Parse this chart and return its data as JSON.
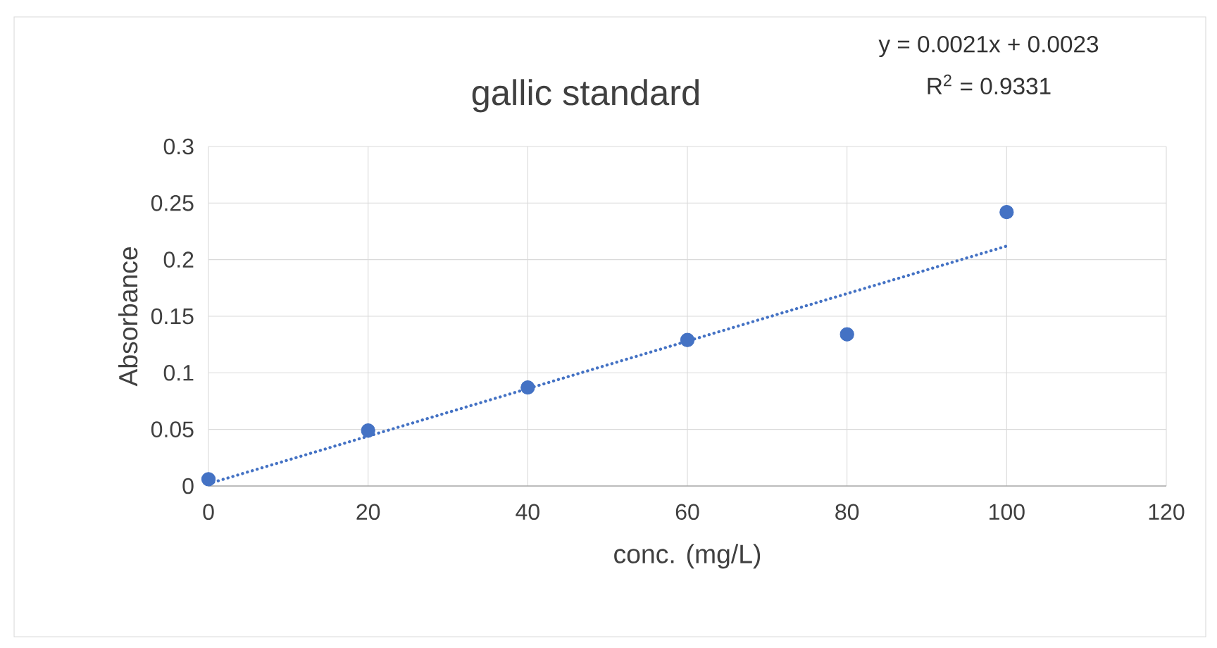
{
  "chart_data": {
    "type": "scatter",
    "title": "gallic standard",
    "xlabel": "conc. (mg/L)",
    "ylabel": "Absorbance",
    "annotations": [
      "y = 0.0021x + 0.0023",
      "R$^{2}$ = 0.9331"
    ],
    "x": [
      0,
      20,
      40,
      60,
      80,
      100
    ],
    "series": [
      {
        "color": "#4472c4",
        "marker": "circle",
        "values": [
          0.006,
          0.049,
          0.087,
          0.129,
          0.134,
          0.242
        ]
      },
      {
        "type": "line",
        "color": "#4472c4",
        "line_style": "dotted",
        "marker": "none",
        "x": [
          0,
          100
        ],
        "values": [
          0.002,
          0.212
        ]
      }
    ],
    "xlim": [
      0,
      120
    ],
    "xticks": [
      0,
      20,
      40,
      60,
      80,
      100,
      120
    ],
    "ylim": [
      0,
      0.3
    ],
    "yticks": [
      0,
      0.05,
      0.1,
      0.15,
      0.2,
      0.25,
      0.3
    ],
    "grid": true
  }
}
